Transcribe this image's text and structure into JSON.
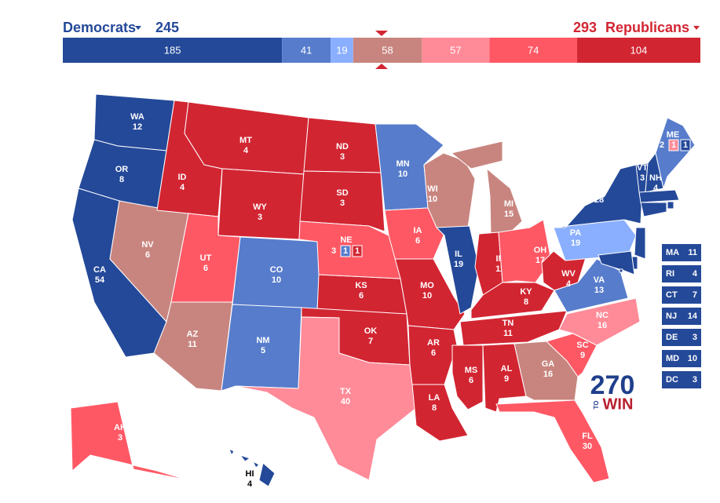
{
  "header": {
    "dem_label": "Democrats",
    "dem_total": 245,
    "rep_total": 293,
    "rep_label": "Republicans",
    "dem_color": "#244999",
    "rep_color": "#d22532"
  },
  "bar": [
    {
      "value": 185,
      "color": "#244999"
    },
    {
      "value": 41,
      "color": "#577ccc"
    },
    {
      "value": 19,
      "color": "#8aafff"
    },
    {
      "value": 58,
      "color": "#c8857f"
    },
    {
      "value": 57,
      "color": "#ff8b98"
    },
    {
      "value": 74,
      "color": "#ff5865"
    },
    {
      "value": 104,
      "color": "#d22532"
    }
  ],
  "states": [
    {
      "label": "WA",
      "ev": 12,
      "color": "#244999"
    },
    {
      "label": "OR",
      "ev": 8,
      "color": "#244999"
    },
    {
      "label": "CA",
      "ev": 54,
      "color": "#244999"
    },
    {
      "label": "NV",
      "ev": 6,
      "color": "#c8857f"
    },
    {
      "label": "ID",
      "ev": 4,
      "color": "#d22532"
    },
    {
      "label": "MT",
      "ev": 4,
      "color": "#d22532"
    },
    {
      "label": "WY",
      "ev": 3,
      "color": "#d22532"
    },
    {
      "label": "UT",
      "ev": 6,
      "color": "#ff5865"
    },
    {
      "label": "AZ",
      "ev": 11,
      "color": "#c8857f"
    },
    {
      "label": "CO",
      "ev": 10,
      "color": "#577ccc"
    },
    {
      "label": "NM",
      "ev": 5,
      "color": "#577ccc"
    },
    {
      "label": "ND",
      "ev": 3,
      "color": "#d22532"
    },
    {
      "label": "SD",
      "ev": 3,
      "color": "#d22532"
    },
    {
      "label": "KS",
      "ev": 6,
      "color": "#d22532"
    },
    {
      "label": "OK",
      "ev": 7,
      "color": "#d22532"
    },
    {
      "label": "TX",
      "ev": 40,
      "color": "#ff8b98"
    },
    {
      "label": "MN",
      "ev": 10,
      "color": "#577ccc"
    },
    {
      "label": "IA",
      "ev": 6,
      "color": "#ff5865"
    },
    {
      "label": "MO",
      "ev": 10,
      "color": "#d22532"
    },
    {
      "label": "AR",
      "ev": 6,
      "color": "#d22532"
    },
    {
      "label": "LA",
      "ev": 8,
      "color": "#d22532"
    },
    {
      "label": "WI",
      "ev": 10,
      "color": "#c8857f"
    },
    {
      "label": "IL",
      "ev": 19,
      "color": "#244999"
    },
    {
      "label": "MI",
      "ev": 15,
      "color": "#c8857f"
    },
    {
      "label": "IN",
      "ev": 11,
      "color": "#d22532"
    },
    {
      "label": "OH",
      "ev": 17,
      "color": "#ff5865"
    },
    {
      "label": "KY",
      "ev": 8,
      "color": "#d22532"
    },
    {
      "label": "TN",
      "ev": 11,
      "color": "#d22532"
    },
    {
      "label": "MS",
      "ev": 6,
      "color": "#d22532"
    },
    {
      "label": "AL",
      "ev": 9,
      "color": "#d22532"
    },
    {
      "label": "GA",
      "ev": 16,
      "color": "#c8857f"
    },
    {
      "label": "FL",
      "ev": 30,
      "color": "#ff5865"
    },
    {
      "label": "SC",
      "ev": 9,
      "color": "#ff5865"
    },
    {
      "label": "NC",
      "ev": 16,
      "color": "#ff8b98"
    },
    {
      "label": "VA",
      "ev": 13,
      "color": "#577ccc"
    },
    {
      "label": "WV",
      "ev": 4,
      "color": "#d22532"
    },
    {
      "label": "PA",
      "ev": 19,
      "color": "#8aafff"
    },
    {
      "label": "NY",
      "ev": 28,
      "color": "#244999"
    },
    {
      "label": "VT",
      "ev": 3,
      "color": "#244999"
    },
    {
      "label": "NH",
      "ev": 4,
      "color": "#244999"
    },
    {
      "label": "AK",
      "ev": 3,
      "color": "#ff5865"
    },
    {
      "label": "HI",
      "ev": 4,
      "color": "#244999"
    }
  ],
  "split_states": [
    {
      "label": "NE",
      "ev": 3,
      "color": "#ff5865",
      "districts": [
        {
          "ev": 1,
          "color": "#577ccc"
        },
        {
          "ev": 1,
          "color": "#d22532"
        }
      ]
    },
    {
      "label": "ME",
      "ev": 2,
      "color": "#577ccc",
      "districts": [
        {
          "ev": 1,
          "color": "#ff8b98"
        },
        {
          "ev": 1,
          "color": "#244999"
        }
      ]
    }
  ],
  "callouts": [
    {
      "label": "MA",
      "ev": 11,
      "color": "#244999"
    },
    {
      "label": "RI",
      "ev": 4,
      "color": "#244999"
    },
    {
      "label": "CT",
      "ev": 7,
      "color": "#244999"
    },
    {
      "label": "NJ",
      "ev": 14,
      "color": "#244999"
    },
    {
      "label": "DE",
      "ev": 3,
      "color": "#244999"
    },
    {
      "label": "MD",
      "ev": 10,
      "color": "#244999"
    },
    {
      "label": "DC",
      "ev": 3,
      "color": "#244999"
    }
  ],
  "logo": {
    "number": "270",
    "to": "TO",
    "win": "WIN"
  }
}
